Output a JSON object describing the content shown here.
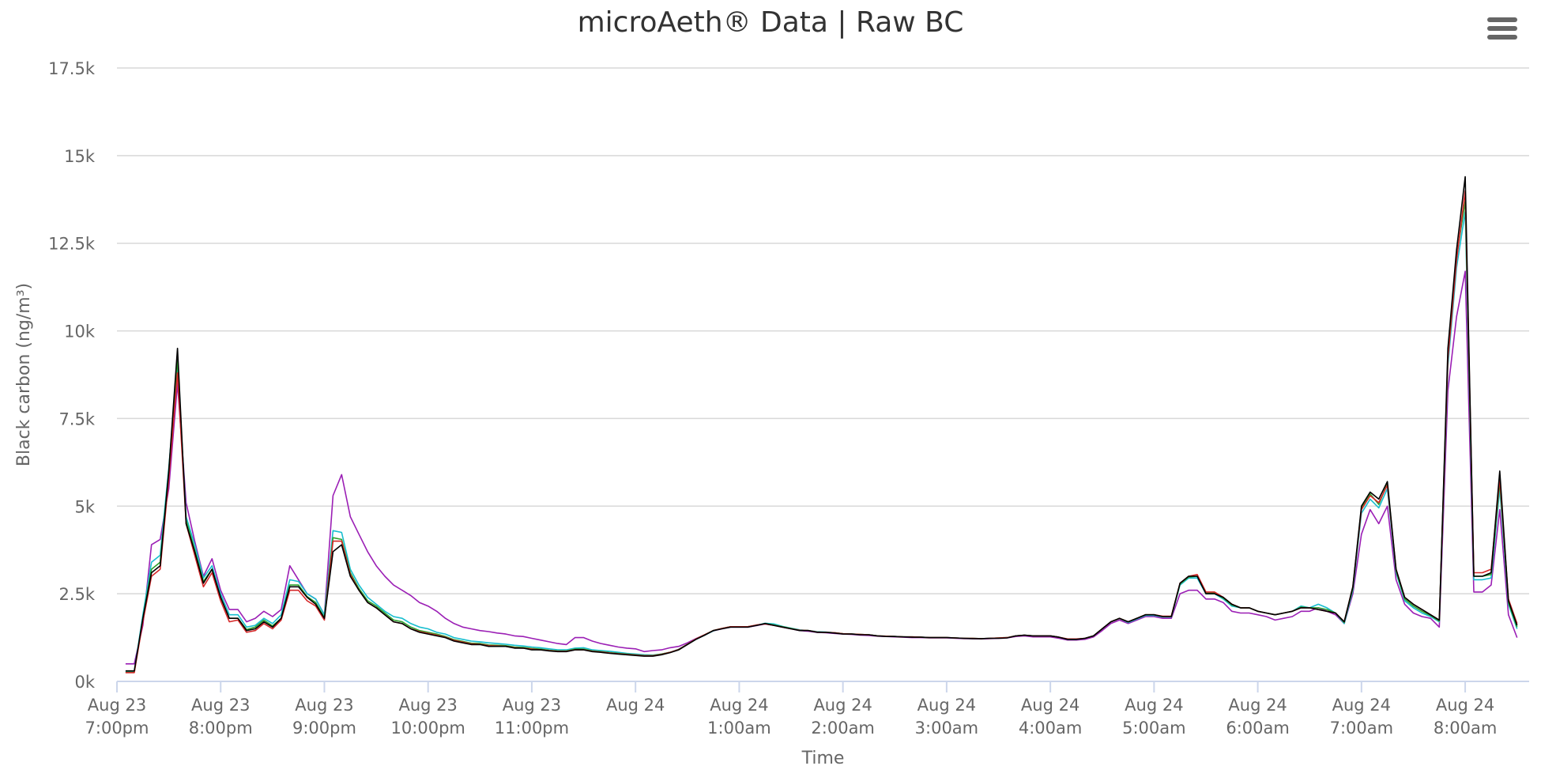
{
  "chart_data": {
    "type": "line",
    "title": "microAeth® Data | Raw BC",
    "xlabel": "Time",
    "ylabel": "Black carbon (ng/m³)",
    "ylim": [
      0,
      17500
    ],
    "yticks": [
      {
        "value": 0,
        "label": "0k"
      },
      {
        "value": 2500,
        "label": "2.5k"
      },
      {
        "value": 5000,
        "label": "5k"
      },
      {
        "value": 7500,
        "label": "7.5k"
      },
      {
        "value": 10000,
        "label": "10k"
      },
      {
        "value": 12500,
        "label": "12.5k"
      },
      {
        "value": 15000,
        "label": "15k"
      },
      {
        "value": 17500,
        "label": "17.5k"
      }
    ],
    "xlim": [
      "Aug 23 7:00pm",
      "Aug 24 8:37am"
    ],
    "xticks": [
      {
        "value": "Aug 23 7:00pm",
        "line1": "Aug 23",
        "line2": "7:00pm"
      },
      {
        "value": "Aug 23 8:00pm",
        "line1": "Aug 23",
        "line2": "8:00pm"
      },
      {
        "value": "Aug 23 9:00pm",
        "line1": "Aug 23",
        "line2": "9:00pm"
      },
      {
        "value": "Aug 23 10:00pm",
        "line1": "Aug 23",
        "line2": "10:00pm"
      },
      {
        "value": "Aug 23 11:00pm",
        "line1": "Aug 23",
        "line2": "11:00pm"
      },
      {
        "value": "Aug 24 12:00am",
        "line1": "Aug 24",
        "line2": ""
      },
      {
        "value": "Aug 24 1:00am",
        "line1": "Aug 24",
        "line2": "1:00am"
      },
      {
        "value": "Aug 24 2:00am",
        "line1": "Aug 24",
        "line2": "2:00am"
      },
      {
        "value": "Aug 24 3:00am",
        "line1": "Aug 24",
        "line2": "3:00am"
      },
      {
        "value": "Aug 24 4:00am",
        "line1": "Aug 24",
        "line2": "4:00am"
      },
      {
        "value": "Aug 24 5:00am",
        "line1": "Aug 24",
        "line2": "5:00am"
      },
      {
        "value": "Aug 24 6:00am",
        "line1": "Aug 24",
        "line2": "6:00am"
      },
      {
        "value": "Aug 24 7:00am",
        "line1": "Aug 24",
        "line2": "7:00am"
      },
      {
        "value": "Aug 24 8:00am",
        "line1": "Aug 24",
        "line2": "8:00am"
      }
    ],
    "grid": "horizontal",
    "legend": "none",
    "sample_interval_minutes": 5,
    "x_start": "Aug 23 7:05pm",
    "series": [
      {
        "color": "#000000",
        "values": [
          300,
          300,
          1800,
          3100,
          3300,
          6000,
          9500,
          4500,
          3700,
          2800,
          3200,
          2400,
          1800,
          1800,
          1450,
          1500,
          1700,
          1550,
          1800,
          2700,
          2700,
          2400,
          2200,
          1800,
          3700,
          3900,
          3000,
          2600,
          2250,
          2100,
          1900,
          1700,
          1650,
          1500,
          1400,
          1350,
          1300,
          1250,
          1150,
          1100,
          1050,
          1050,
          1000,
          1000,
          1000,
          950,
          950,
          900,
          900,
          870,
          850,
          850,
          900,
          900,
          850,
          830,
          800,
          780,
          760,
          740,
          720,
          720,
          760,
          820,
          900,
          1050,
          1200,
          1320,
          1450,
          1500,
          1550,
          1550,
          1550,
          1600,
          1650,
          1600,
          1550,
          1500,
          1450,
          1450,
          1400,
          1400,
          1380,
          1350,
          1350,
          1330,
          1330,
          1300,
          1280,
          1280,
          1270,
          1260,
          1260,
          1250,
          1250,
          1250,
          1240,
          1230,
          1220,
          1220,
          1230,
          1230,
          1240,
          1300,
          1320,
          1300,
          1300,
          1300,
          1260,
          1200,
          1200,
          1230,
          1300,
          1500,
          1700,
          1800,
          1700,
          1800,
          1900,
          1900,
          1850,
          1850,
          2800,
          3000,
          3000,
          2500,
          2500,
          2400,
          2200,
          2100,
          2100,
          2000,
          1950,
          1900,
          1950,
          2000,
          2100,
          2100,
          2050,
          2000,
          1950,
          1700,
          2700,
          5000,
          5400,
          5200,
          5700,
          3200,
          2400,
          2200,
          2050,
          1900,
          1750,
          9500,
          12300,
          14400,
          3000,
          3000,
          3100,
          6000,
          2300,
          1600
        ]
      },
      {
        "color": "#d62728",
        "values": [
          250,
          250,
          1700,
          3000,
          3200,
          5800,
          8800,
          4500,
          3600,
          2700,
          3100,
          2300,
          1700,
          1750,
          1400,
          1450,
          1650,
          1500,
          1750,
          2600,
          2600,
          2300,
          2150,
          1750,
          4000,
          4000,
          3050,
          2600,
          2250,
          2100,
          1900,
          1700,
          1650,
          1500,
          1420,
          1370,
          1320,
          1260,
          1170,
          1120,
          1070,
          1060,
          1020,
          1010,
          1000,
          960,
          950,
          920,
          900,
          880,
          860,
          860,
          900,
          900,
          860,
          840,
          810,
          790,
          770,
          750,
          730,
          730,
          770,
          830,
          910,
          1060,
          1210,
          1330,
          1450,
          1510,
          1560,
          1560,
          1560,
          1610,
          1640,
          1600,
          1550,
          1500,
          1460,
          1450,
          1410,
          1400,
          1390,
          1360,
          1350,
          1340,
          1330,
          1300,
          1290,
          1280,
          1270,
          1270,
          1260,
          1250,
          1250,
          1250,
          1240,
          1230,
          1230,
          1220,
          1230,
          1240,
          1250,
          1300,
          1320,
          1300,
          1300,
          1300,
          1260,
          1210,
          1210,
          1230,
          1300,
          1500,
          1700,
          1800,
          1700,
          1800,
          1900,
          1900,
          1860,
          1860,
          2800,
          3000,
          3050,
          2550,
          2550,
          2400,
          2200,
          2100,
          2100,
          2000,
          1950,
          1900,
          1950,
          2000,
          2100,
          2100,
          2050,
          2000,
          1950,
          1700,
          2700,
          4900,
          5300,
          5100,
          5600,
          3200,
          2400,
          2200,
          2050,
          1900,
          1750,
          9200,
          12000,
          14000,
          3100,
          3100,
          3200,
          5800,
          2350,
          1650
        ]
      },
      {
        "color": "#17becf",
        "values": [
          280,
          280,
          1900,
          3400,
          3600,
          6100,
          9000,
          4700,
          3900,
          2950,
          3300,
          2500,
          1900,
          1900,
          1550,
          1600,
          1800,
          1650,
          1900,
          2900,
          2850,
          2500,
          2350,
          1900,
          4300,
          4250,
          3200,
          2750,
          2400,
          2200,
          2000,
          1850,
          1800,
          1650,
          1550,
          1500,
          1400,
          1350,
          1250,
          1200,
          1150,
          1130,
          1100,
          1080,
          1060,
          1030,
          1010,
          980,
          960,
          930,
          900,
          900,
          950,
          960,
          900,
          880,
          860,
          830,
          800,
          780,
          760,
          750,
          780,
          830,
          920,
          1060,
          1200,
          1320,
          1440,
          1510,
          1560,
          1560,
          1560,
          1600,
          1660,
          1640,
          1570,
          1520,
          1470,
          1450,
          1420,
          1410,
          1390,
          1360,
          1350,
          1340,
          1330,
          1300,
          1290,
          1280,
          1270,
          1270,
          1260,
          1250,
          1250,
          1250,
          1240,
          1230,
          1230,
          1220,
          1230,
          1240,
          1250,
          1300,
          1320,
          1300,
          1300,
          1300,
          1260,
          1200,
          1200,
          1230,
          1300,
          1500,
          1700,
          1800,
          1680,
          1780,
          1880,
          1880,
          1840,
          1840,
          2750,
          2950,
          2950,
          2500,
          2500,
          2350,
          2150,
          2100,
          2100,
          2000,
          1950,
          1900,
          1950,
          2000,
          2150,
          2100,
          2200,
          2100,
          1950,
          1650,
          2600,
          4800,
          5200,
          4950,
          5500,
          3100,
          2300,
          2100,
          1950,
          1850,
          1700,
          9000,
          11800,
          13400,
          2900,
          2900,
          2950,
          5500,
          2200,
          1500
        ]
      },
      {
        "color": "#2ca02c",
        "values": [
          260,
          260,
          1800,
          3200,
          3400,
          6000,
          9200,
          4600,
          3750,
          2850,
          3200,
          2400,
          1800,
          1800,
          1480,
          1550,
          1750,
          1580,
          1800,
          2750,
          2750,
          2420,
          2250,
          1820,
          4100,
          4050,
          3100,
          2650,
          2300,
          2150,
          1950,
          1750,
          1700,
          1550,
          1450,
          1400,
          1350,
          1280,
          1190,
          1140,
          1090,
          1080,
          1040,
          1030,
          1020,
          980,
          970,
          940,
          920,
          890,
          870,
          870,
          920,
          920,
          870,
          850,
          820,
          800,
          780,
          760,
          740,
          740,
          780,
          830,
          910,
          1060,
          1210,
          1330,
          1450,
          1510,
          1560,
          1560,
          1560,
          1600,
          1650,
          1610,
          1560,
          1510,
          1460,
          1450,
          1410,
          1400,
          1390,
          1360,
          1350,
          1340,
          1330,
          1300,
          1290,
          1280,
          1270,
          1270,
          1260,
          1250,
          1250,
          1250,
          1240,
          1230,
          1230,
          1220,
          1230,
          1240,
          1250,
          1300,
          1320,
          1300,
          1300,
          1300,
          1260,
          1200,
          1200,
          1230,
          1300,
          1500,
          1700,
          1800,
          1700,
          1800,
          1900,
          1900,
          1850,
          1850,
          2780,
          2980,
          3000,
          2520,
          2520,
          2380,
          2180,
          2100,
          2100,
          2000,
          1950,
          1900,
          1950,
          2000,
          2120,
          2100,
          2100,
          2050,
          1950,
          1680,
          2650,
          4950,
          5350,
          5050,
          5650,
          3150,
          2350,
          2150,
          2000,
          1880,
          1720,
          9300,
          12100,
          13700,
          3000,
          3000,
          3050,
          5700,
          2250,
          1550
        ]
      },
      {
        "color": "#9b1fb5",
        "values": [
          500,
          500,
          1600,
          3900,
          4050,
          5500,
          8500,
          5100,
          4000,
          3000,
          3500,
          2600,
          2050,
          2050,
          1700,
          1800,
          2000,
          1850,
          2050,
          3300,
          2900,
          2500,
          2350,
          1900,
          5300,
          5900,
          4700,
          4200,
          3700,
          3300,
          3000,
          2750,
          2600,
          2450,
          2250,
          2150,
          2000,
          1800,
          1650,
          1550,
          1500,
          1450,
          1420,
          1380,
          1350,
          1300,
          1280,
          1230,
          1180,
          1130,
          1080,
          1050,
          1250,
          1250,
          1150,
          1080,
          1030,
          980,
          950,
          930,
          850,
          880,
          900,
          960,
          1000,
          1100,
          1220,
          1330,
          1440,
          1500,
          1550,
          1550,
          1550,
          1590,
          1640,
          1600,
          1550,
          1500,
          1450,
          1430,
          1400,
          1390,
          1370,
          1350,
          1340,
          1320,
          1310,
          1290,
          1280,
          1270,
          1260,
          1250,
          1250,
          1240,
          1240,
          1240,
          1230,
          1220,
          1220,
          1210,
          1220,
          1230,
          1240,
          1280,
          1300,
          1270,
          1270,
          1270,
          1230,
          1180,
          1180,
          1200,
          1270,
          1450,
          1650,
          1750,
          1650,
          1750,
          1850,
          1850,
          1800,
          1800,
          2500,
          2600,
          2600,
          2350,
          2350,
          2250,
          2000,
          1950,
          1950,
          1900,
          1850,
          1750,
          1800,
          1850,
          2000,
          2000,
          2100,
          2000,
          1900,
          1650,
          2500,
          4200,
          4900,
          4500,
          5000,
          2900,
          2200,
          1950,
          1850,
          1800,
          1550,
          8300,
          10400,
          11700,
          2550,
          2550,
          2750,
          4900,
          1900,
          1250
        ]
      }
    ]
  }
}
